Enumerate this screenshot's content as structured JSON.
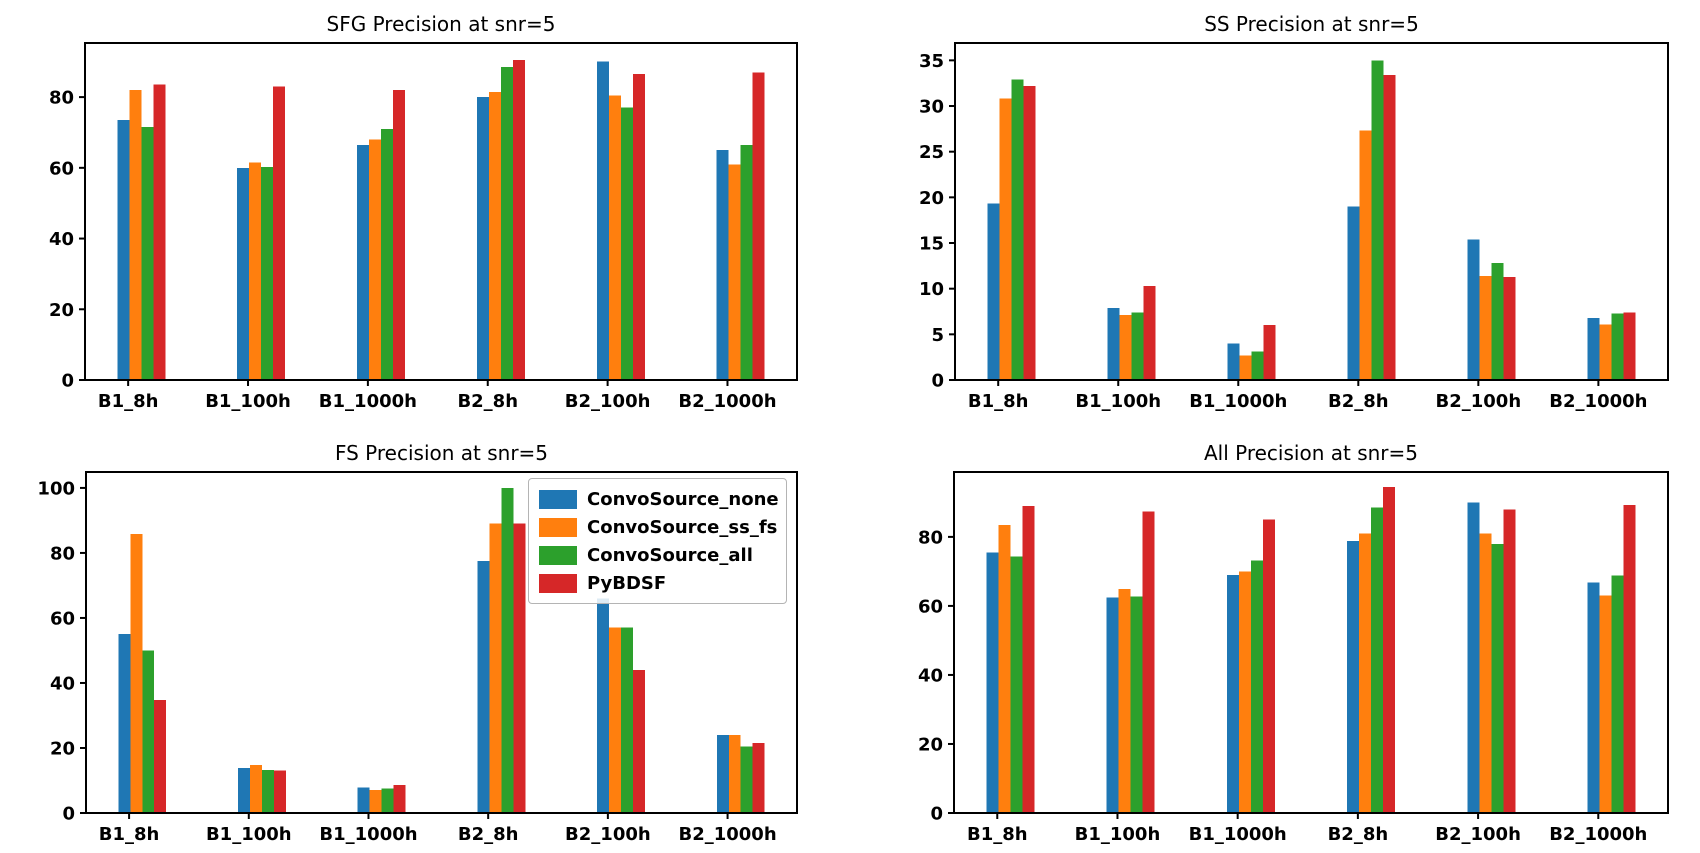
{
  "figure": {
    "background": "#ffffff",
    "kind": "matplotlib-2x2-grouped-bar-figure"
  },
  "legend": {
    "location": "upper-right-of-FS-panel",
    "items": [
      {
        "label": "ConvoSource_none",
        "color": "#1f77b4"
      },
      {
        "label": "ConvoSource_ss_fs",
        "color": "#ff7f0e"
      },
      {
        "label": "ConvoSource_all",
        "color": "#2ca02c"
      },
      {
        "label": "PyBDSF",
        "color": "#d62728"
      }
    ]
  },
  "chart_data": [
    {
      "id": "sfg-precision",
      "type": "bar",
      "title": "SFG Precision at snr=5",
      "categories": [
        "B1_8h",
        "B1_100h",
        "B1_1000h",
        "B2_8h",
        "B2_100h",
        "B2_1000h"
      ],
      "series": [
        {
          "name": "ConvoSource_none",
          "color": "#1f77b4",
          "values": [
            73.5,
            60.0,
            66.5,
            80.0,
            90.0,
            65.0
          ]
        },
        {
          "name": "ConvoSource_ss_fs",
          "color": "#ff7f0e",
          "values": [
            82.0,
            61.5,
            68.0,
            81.5,
            80.5,
            61.0
          ]
        },
        {
          "name": "ConvoSource_all",
          "color": "#2ca02c",
          "values": [
            71.5,
            60.3,
            71.0,
            88.5,
            77.0,
            66.5
          ]
        },
        {
          "name": "PyBDSF",
          "color": "#d62728",
          "values": [
            83.5,
            83.0,
            82.0,
            90.5,
            86.5,
            87.0
          ]
        }
      ],
      "ylim": [
        0,
        95.3
      ],
      "yticks": [
        0,
        20,
        40,
        60,
        80
      ],
      "grid": false,
      "legend": false
    },
    {
      "id": "ss-precision",
      "type": "bar",
      "title": "SS Precision at snr=5",
      "categories": [
        "B1_8h",
        "B1_100h",
        "B1_1000h",
        "B2_8h",
        "B2_100h",
        "B2_1000h"
      ],
      "series": [
        {
          "name": "ConvoSource_none",
          "color": "#1f77b4",
          "values": [
            19.3,
            7.9,
            4.0,
            19.0,
            15.4,
            6.8
          ]
        },
        {
          "name": "ConvoSource_ss_fs",
          "color": "#ff7f0e",
          "values": [
            30.8,
            7.1,
            2.7,
            27.3,
            11.4,
            6.1
          ]
        },
        {
          "name": "ConvoSource_all",
          "color": "#2ca02c",
          "values": [
            32.9,
            7.4,
            3.1,
            35.0,
            12.8,
            7.3
          ]
        },
        {
          "name": "PyBDSF",
          "color": "#d62728",
          "values": [
            32.2,
            10.3,
            6.0,
            33.4,
            11.3,
            7.4
          ]
        }
      ],
      "ylim": [
        0,
        36.9
      ],
      "yticks": [
        0,
        5,
        10,
        15,
        20,
        25,
        30,
        35
      ],
      "grid": false,
      "legend": false
    },
    {
      "id": "fs-precision",
      "type": "bar",
      "title": "FS Precision at snr=5",
      "categories": [
        "B1_8h",
        "B1_100h",
        "B1_1000h",
        "B2_8h",
        "B2_100h",
        "B2_1000h"
      ],
      "series": [
        {
          "name": "ConvoSource_none",
          "color": "#1f77b4",
          "values": [
            55.0,
            13.8,
            7.8,
            77.5,
            66.0,
            24.0
          ]
        },
        {
          "name": "ConvoSource_ss_fs",
          "color": "#ff7f0e",
          "values": [
            85.8,
            14.8,
            7.0,
            89.0,
            57.0,
            24.0
          ]
        },
        {
          "name": "ConvoSource_all",
          "color": "#2ca02c",
          "values": [
            50.0,
            13.3,
            7.6,
            100.0,
            57.0,
            20.5
          ]
        },
        {
          "name": "PyBDSF",
          "color": "#d62728",
          "values": [
            34.8,
            13.0,
            8.6,
            89.0,
            44.0,
            21.5
          ]
        }
      ],
      "ylim": [
        0,
        104.9
      ],
      "yticks": [
        0,
        20,
        40,
        60,
        80,
        100
      ],
      "grid": false,
      "legend": true
    },
    {
      "id": "all-precision",
      "type": "bar",
      "title": "All Precision at snr=5",
      "categories": [
        "B1_8h",
        "B1_100h",
        "B1_1000h",
        "B2_8h",
        "B2_100h",
        "B2_1000h"
      ],
      "series": [
        {
          "name": "ConvoSource_none",
          "color": "#1f77b4",
          "values": [
            75.5,
            62.5,
            68.9,
            78.8,
            90.0,
            66.8
          ]
        },
        {
          "name": "ConvoSource_ss_fs",
          "color": "#ff7f0e",
          "values": [
            83.5,
            64.9,
            70.0,
            81.0,
            81.0,
            63.0
          ]
        },
        {
          "name": "ConvoSource_all",
          "color": "#2ca02c",
          "values": [
            74.3,
            62.8,
            73.2,
            88.5,
            78.0,
            68.8
          ]
        },
        {
          "name": "PyBDSF",
          "color": "#d62728",
          "values": [
            89.0,
            87.3,
            85.0,
            94.4,
            88.0,
            89.2
          ]
        }
      ],
      "ylim": [
        0,
        98.8
      ],
      "yticks": [
        0,
        20,
        40,
        60,
        80
      ],
      "grid": false,
      "legend": false
    }
  ]
}
